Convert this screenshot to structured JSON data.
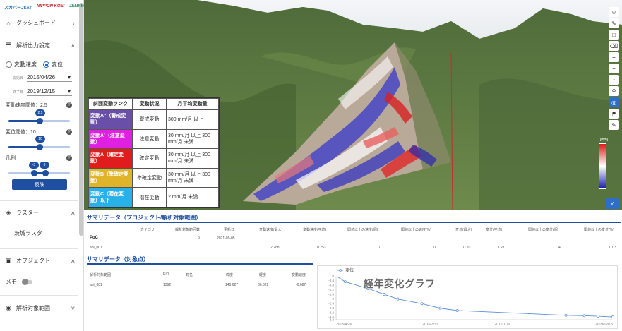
{
  "sidebar": {
    "logos": [
      "スカパーJSAT",
      "NIPPON KOEI",
      "ZENRIN"
    ],
    "dashboard_label": "ダッシュボード",
    "analysis_settings_label": "解析出力設定",
    "radio_velocity": "変動速度",
    "radio_displacement": "変位",
    "start_label": "開始日",
    "start_date": "2015/04/26",
    "end_label": "終了日",
    "end_date": "2019/12/15",
    "velocity_threshold_label": "変動速度閾値：2.5",
    "velocity_threshold_value": "2.5",
    "displacement_threshold_label": "変位閾値：10",
    "displacement_threshold_value": "10",
    "legend_label": "凡例",
    "legend_min": "-3",
    "legend_max": "3",
    "apply_label": "反映",
    "raster_label": "ラスター",
    "raster_layer": "茨城ラスタ",
    "object_label": "オブジェクト",
    "memo_label": "メモ",
    "area_label": "解析対象範囲"
  },
  "legend_table": {
    "headers": [
      "斜面変動ランク",
      "変動状況",
      "月平均変動量"
    ],
    "rows": [
      {
        "rank": "変動A''（警戒変動）",
        "color": "#6a4fa8",
        "status": "警戒変動",
        "rate": "300 mm/月 以上"
      },
      {
        "rank": "変動A'（注意変動）",
        "color": "#e020e0",
        "status": "注意変動",
        "rate": "30 mm/月 以上 300 mm/月 未満"
      },
      {
        "rank": "変動A（確定変動）",
        "color": "#e01c1c",
        "status": "確定変動",
        "rate": "30 mm/月 以上 300 mm/月 未満"
      },
      {
        "rank": "変動B（準確定変動）",
        "color": "#e0b428",
        "status": "準確定変動",
        "rate": "30 mm/月 以上 300 mm/月 未満"
      },
      {
        "rank": "変動C（潜在変動）以下",
        "color": "#28b0e8",
        "status": "潜在変動",
        "rate": "2 mm/月 未満"
      }
    ]
  },
  "colorbar": {
    "unit": "[mm]"
  },
  "summary_project": {
    "title": "サマリデータ（プロジェクト/解析対象範囲）",
    "headers": [
      "カテゴリ",
      "解析対象範囲数",
      "更新日",
      "変動速度(最大)",
      "変動速度(平均)",
      "閾値以上の速度(個)",
      "閾値以上の速度(%)",
      "変位(最大)",
      "変位(平均)",
      "閾値以上の変位(個)",
      "閾値以上の変位(%)"
    ],
    "poc_row": {
      "name": "PoC",
      "count": "9",
      "date": "2021-09-05"
    },
    "data_row": {
      "name": "aoi_001",
      "values": [
        "2.288",
        "0.253",
        "0",
        "0",
        "11.01",
        "1.21",
        "4",
        "0.03"
      ]
    }
  },
  "summary_point": {
    "title": "サマリデータ（対象点）",
    "headers": [
      "解析対象範囲",
      "PID",
      "町名",
      "緯度",
      "経度",
      "変動速度"
    ],
    "row": [
      "aoi_001",
      "1392",
      "",
      "140.627",
      "36.622",
      "-0.687"
    ]
  },
  "graph": {
    "title": "経年変化グラフ",
    "series_label": "変位",
    "y_ticks": [
      "0",
      "-0.4",
      "-0.8",
      "-1.2",
      "-1.6",
      "-2",
      "-2.4",
      "-2.8",
      "-3.2",
      "-3.6",
      "-3.8"
    ],
    "x_ticks": [
      "2015/4/26",
      "2016/7/31",
      "2017/11/6",
      "2019/12/15"
    ]
  },
  "chart_data": {
    "type": "line",
    "title": "経年変化グラフ",
    "series": [
      {
        "name": "変位",
        "color": "#5b8fd6",
        "x": [
          "2015-04-26",
          "2015-06-21",
          "2015-11-08",
          "2016-02-14",
          "2016-05-08",
          "2016-10-02",
          "2017-01-22",
          "2017-05-07",
          "2019-03-03",
          "2019-06-23",
          "2019-09-15",
          "2019-12-15"
        ],
        "y": [
          0,
          -0.5,
          -1.1,
          -1.6,
          -2.0,
          -2.4,
          -2.8,
          -3.0,
          -3.42,
          -3.45,
          -3.5,
          -3.56
        ]
      }
    ],
    "xlabel": "",
    "ylabel": "",
    "ylim": [
      -3.8,
      0
    ],
    "grid": false,
    "legend": "top-left"
  }
}
